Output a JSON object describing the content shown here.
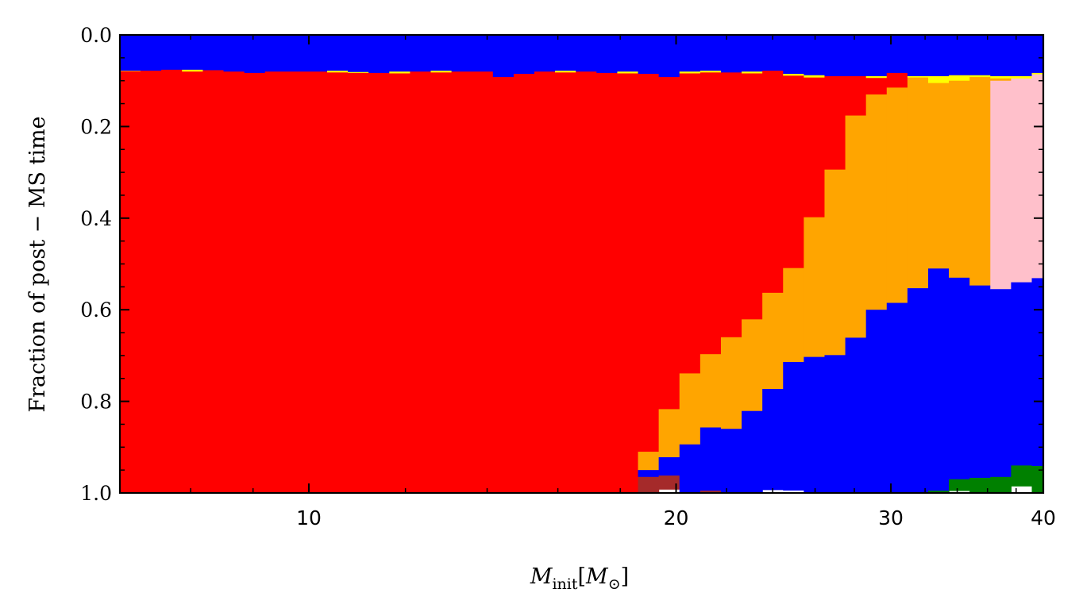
{
  "chart_data": {
    "type": "area",
    "subtype": "stacked-step-histogram",
    "xlabel_main": "M",
    "xlabel_sub": "init",
    "xlabel_unit_main": "M",
    "xlabel_unit_symbol": "⊙",
    "ylabel": "Fraction of post − MS time",
    "x_scale": "log",
    "xlim": [
      7.0,
      40.0
    ],
    "ylim": [
      1.0,
      0.0
    ],
    "y_inverted": true,
    "x_ticks": [
      10,
      20,
      30,
      40
    ],
    "y_ticks": [
      0.0,
      0.2,
      0.4,
      0.6,
      0.8,
      1.0
    ],
    "y_tick_labels": [
      "0.0",
      "0.2",
      "0.4",
      "0.6",
      "0.8",
      "1.0"
    ],
    "grid": false,
    "legend": "none",
    "bin_edges": [
      7.0,
      7.279,
      7.569,
      7.871,
      8.186,
      8.512,
      8.852,
      9.205,
      9.572,
      9.954,
      10.351,
      10.764,
      11.193,
      11.64,
      12.104,
      12.587,
      13.089,
      13.611,
      14.154,
      14.719,
      15.306,
      15.917,
      16.552,
      17.212,
      17.899,
      18.613,
      19.355,
      20.128,
      20.931,
      21.766,
      22.634,
      23.537,
      24.476,
      25.453,
      26.468,
      27.524,
      28.622,
      29.764,
      30.952,
      32.186,
      33.47,
      34.806,
      36.194,
      37.638,
      39.14,
      40.0
    ],
    "bands": [
      {
        "name": "blue (top)",
        "color": "#0000ff",
        "values": [
          0.078,
          0.078,
          0.076,
          0.076,
          0.077,
          0.08,
          0.083,
          0.08,
          0.08,
          0.08,
          0.078,
          0.081,
          0.083,
          0.08,
          0.08,
          0.078,
          0.08,
          0.08,
          0.092,
          0.085,
          0.08,
          0.078,
          0.08,
          0.083,
          0.08,
          0.085,
          0.092,
          0.08,
          0.078,
          0.082,
          0.08,
          0.078,
          0.085,
          0.088,
          0.09,
          0.09,
          0.09,
          0.083,
          0.09,
          0.09,
          0.088,
          0.088,
          0.09,
          0.09,
          0.083
        ]
      },
      {
        "name": "yellow",
        "color": "#ffff00",
        "values": [
          0.001,
          0.0,
          0.0,
          0.004,
          0.0,
          0.0,
          0.0,
          0.0,
          0.0,
          0.0,
          0.004,
          0.002,
          0.0,
          0.004,
          0.0,
          0.004,
          0.0,
          0.0,
          0.0,
          0.0,
          0.0,
          0.004,
          0.0,
          0.0,
          0.004,
          0.0,
          0.0,
          0.004,
          0.004,
          0.0,
          0.004,
          0.0,
          0.004,
          0.005,
          0.0,
          0.0,
          0.004,
          0.0,
          0.003,
          0.015,
          0.012,
          0.004,
          0.005,
          0.005,
          0.003
        ]
      },
      {
        "name": "red",
        "color": "#ff0000",
        "values": [
          0.92,
          0.922,
          0.924,
          0.92,
          0.923,
          0.92,
          0.917,
          0.92,
          0.92,
          0.92,
          0.918,
          0.917,
          0.917,
          0.916,
          0.92,
          0.918,
          0.92,
          0.92,
          0.908,
          0.915,
          0.92,
          0.918,
          0.92,
          0.917,
          0.916,
          0.825,
          0.725,
          0.655,
          0.615,
          0.578,
          0.537,
          0.485,
          0.42,
          0.305,
          0.204,
          0.086,
          0.036,
          0.032,
          0.0,
          0.0,
          0.0,
          0.0,
          0.0,
          0.0,
          0.0
        ]
      },
      {
        "name": "orange",
        "color": "#ffa500",
        "values": [
          0,
          0,
          0,
          0,
          0,
          0,
          0,
          0,
          0,
          0,
          0,
          0,
          0,
          0,
          0,
          0,
          0,
          0,
          0,
          0,
          0,
          0,
          0,
          0,
          0,
          0.04,
          0.105,
          0.155,
          0.16,
          0.2,
          0.2,
          0.21,
          0.205,
          0.305,
          0.405,
          0.485,
          0.47,
          0.47,
          0.46,
          0.405,
          0.43,
          0.455,
          0.005,
          0.0,
          0.0
        ]
      },
      {
        "name": "pink",
        "color": "#ffc0cb",
        "values": [
          0,
          0,
          0,
          0,
          0,
          0,
          0,
          0,
          0,
          0,
          0,
          0,
          0,
          0,
          0,
          0,
          0,
          0,
          0,
          0,
          0,
          0,
          0,
          0,
          0,
          0,
          0,
          0,
          0,
          0,
          0,
          0,
          0,
          0,
          0,
          0,
          0,
          0,
          0,
          0,
          0,
          0,
          0.455,
          0.445,
          0.445
        ]
      },
      {
        "name": "blue (bottom)",
        "color": "#0000ff",
        "values": [
          0,
          0,
          0,
          0,
          0,
          0,
          0,
          0,
          0,
          0,
          0,
          0,
          0,
          0,
          0,
          0,
          0,
          0,
          0,
          0,
          0,
          0,
          0,
          0,
          0,
          0.015,
          0.04,
          0.105,
          0.138,
          0.155,
          0.179,
          0.22,
          0.28,
          0.3,
          0.335,
          0.342,
          0.399,
          0.415,
          0.445,
          0.485,
          0.44,
          0.42,
          0.41,
          0.4,
          0.41
        ]
      },
      {
        "name": "green",
        "color": "#008000",
        "values": [
          0,
          0,
          0,
          0,
          0,
          0,
          0,
          0,
          0,
          0,
          0,
          0,
          0,
          0,
          0,
          0,
          0,
          0,
          0,
          0,
          0,
          0,
          0,
          0,
          0,
          0,
          0,
          0,
          0,
          0,
          0,
          0,
          0,
          0,
          0.002,
          0.004,
          0.005,
          0.005,
          0.0,
          0.007,
          0.025,
          0.032,
          0.035,
          0.045,
          0.065
        ]
      },
      {
        "name": "brown",
        "color": "#a52a2a",
        "values": [
          0,
          0,
          0,
          0,
          0,
          0,
          0,
          0,
          0,
          0,
          0,
          0,
          0,
          0,
          0,
          0,
          0,
          0,
          0,
          0,
          0,
          0,
          0,
          0.0,
          0.0,
          0.035,
          0.03,
          0.005,
          0.003,
          0.0,
          0.0,
          0.0,
          0.0,
          0.0,
          0.0,
          0.0,
          0.0,
          0.0,
          0.0,
          0.0,
          0.0,
          0.0,
          0.0,
          0.0,
          0.0
        ]
      }
    ]
  }
}
